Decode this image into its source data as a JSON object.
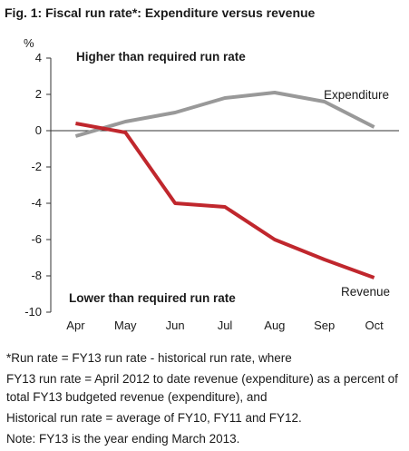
{
  "chart_data": {
    "type": "line",
    "title": "Fig. 1: Fiscal run rate*: Expenditure versus revenue",
    "ylabel": "%",
    "categories": [
      "Apr",
      "May",
      "Jun",
      "Jul",
      "Aug",
      "Sep",
      "Oct"
    ],
    "ylim": [
      -10,
      4
    ],
    "yticks": [
      4,
      2,
      0,
      -2,
      -4,
      -6,
      -8,
      -10
    ],
    "series": [
      {
        "name": "Expenditure",
        "color": "#999999",
        "values": [
          -0.3,
          0.5,
          1.0,
          1.8,
          2.1,
          1.6,
          0.2
        ]
      },
      {
        "name": "Revenue",
        "color": "#c0272d",
        "values": [
          0.4,
          -0.1,
          -4.0,
          -4.2,
          -6.0,
          -7.1,
          -8.1
        ]
      }
    ],
    "annotations": {
      "top": "Higher than required  run rate",
      "bottom": "Lower than required run rate"
    },
    "grid": false,
    "legend": "inline labels"
  },
  "notes": [
    "*Run rate = FY13 run rate - historical run rate, where",
    "FY13 run rate = April 2012 to date revenue (expenditure) as a percent of total FY13 budgeted revenue (expenditure), and",
    "Historical run rate = average of FY10, FY11 and FY12.",
    "Note: FY13 is the year ending March 2013."
  ]
}
